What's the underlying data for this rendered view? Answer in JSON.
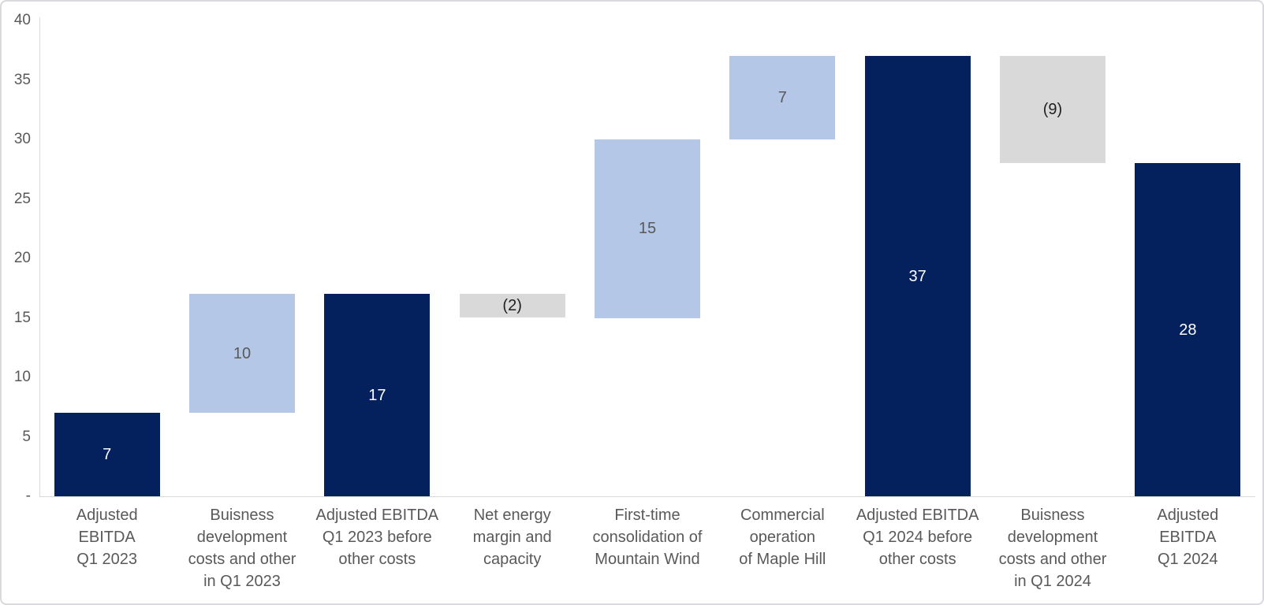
{
  "chart_data": {
    "type": "bar",
    "subtype": "waterfall",
    "title": "",
    "xlabel": "",
    "ylabel": "",
    "ylim": [
      0,
      40
    ],
    "grid": false,
    "legend": false,
    "yticks": [
      {
        "value": 0,
        "label": "-"
      },
      {
        "value": 5,
        "label": "5"
      },
      {
        "value": 10,
        "label": "10"
      },
      {
        "value": 15,
        "label": "15"
      },
      {
        "value": 20,
        "label": "20"
      },
      {
        "value": 25,
        "label": "25"
      },
      {
        "value": 30,
        "label": "30"
      },
      {
        "value": 35,
        "label": "35"
      },
      {
        "value": 40,
        "label": "40"
      }
    ],
    "colors": {
      "total": "#04215E",
      "increase": "#B4C7E7",
      "decrease": "#D9D9D9",
      "label_on_total": "#FFFFFF",
      "label_on_increase": "#595959",
      "label_on_decrease": "#1F1F1F",
      "axis_line": "#D9D9D9",
      "tick_label": "#595959",
      "category_label": "#595959"
    },
    "bars": [
      {
        "category": "Adjusted EBITDA Q1 2023",
        "category_lines": [
          "Adjusted",
          "EBITDA",
          "Q1 2023"
        ],
        "start": 0,
        "end": 7,
        "value": 7,
        "label": "7",
        "role": "total"
      },
      {
        "category": "Buisness development costs and other in Q1 2023",
        "category_lines": [
          "Buisness",
          "development",
          "costs and other",
          "in Q1 2023"
        ],
        "start": 7,
        "end": 17,
        "value": 10,
        "label": "10",
        "role": "increase"
      },
      {
        "category": "Adjusted EBITDA Q1 2023 before other costs",
        "category_lines": [
          "Adjusted EBITDA",
          "Q1 2023 before",
          "other costs"
        ],
        "start": 0,
        "end": 17,
        "value": 17,
        "label": "17",
        "role": "total"
      },
      {
        "category": "Net energy margin and capacity",
        "category_lines": [
          "Net energy",
          "margin and",
          "capacity"
        ],
        "start": 15,
        "end": 17,
        "value": -2,
        "label": "(2)",
        "role": "decrease"
      },
      {
        "category": "First-time consolidation of Mountain Wind",
        "category_lines": [
          "First-time",
          "consolidation of",
          "Mountain Wind"
        ],
        "start": 15,
        "end": 30,
        "value": 15,
        "label": "15",
        "role": "increase"
      },
      {
        "category": "Commercial operation of Maple Hill",
        "category_lines": [
          "Commercial",
          "operation",
          "of Maple Hill"
        ],
        "start": 30,
        "end": 37,
        "value": 7,
        "label": "7",
        "role": "increase"
      },
      {
        "category": "Adjusted EBITDA Q1 2024 before other costs",
        "category_lines": [
          "Adjusted EBITDA",
          "Q1 2024 before",
          "other costs"
        ],
        "start": 0,
        "end": 37,
        "value": 37,
        "label": "37",
        "role": "total"
      },
      {
        "category": "Buisness development costs and other in Q1 2024",
        "category_lines": [
          "Buisness",
          "development",
          "costs and other",
          "in Q1 2024"
        ],
        "start": 28,
        "end": 37,
        "value": -9,
        "label": "(9)",
        "role": "decrease"
      },
      {
        "category": "Adjusted EBITDA Q1 2024",
        "category_lines": [
          "Adjusted",
          "EBITDA",
          "Q1 2024"
        ],
        "start": 0,
        "end": 28,
        "value": 28,
        "label": "28",
        "role": "total"
      }
    ]
  }
}
